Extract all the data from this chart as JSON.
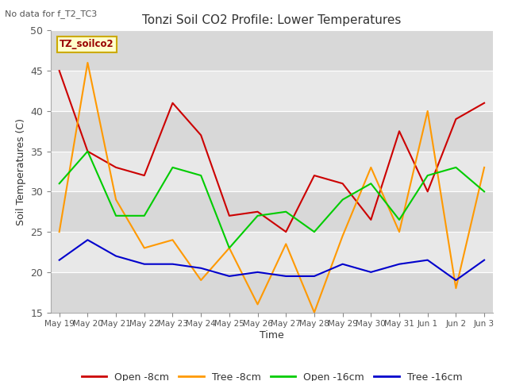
{
  "title": "Tonzi Soil CO2 Profile: Lower Temperatures",
  "subtitle": "No data for f_T2_TC3",
  "ylabel": "Soil Temperatures (C)",
  "xlabel": "Time",
  "ylim": [
    15,
    50
  ],
  "bg_color": "#e8e8e8",
  "legend_box_label": "TZ_soilco2",
  "x_labels": [
    "May 19",
    "May 20",
    "May 21",
    "May 22",
    "May 23",
    "May 24",
    "May 25",
    "May 26",
    "May 27",
    "May 28",
    "May 29",
    "May 30",
    "May 31",
    "Jun 1",
    "Jun 2",
    "Jun 3"
  ],
  "series": {
    "open_8cm": {
      "label": "Open -8cm",
      "color": "#cc0000",
      "values": [
        45,
        35,
        33,
        32,
        41,
        37,
        27,
        27.5,
        25,
        32,
        31,
        26.5,
        37.5,
        30,
        39,
        41
      ]
    },
    "tree_8cm": {
      "label": "Tree -8cm",
      "color": "#ff9900",
      "values": [
        25,
        46,
        29,
        23,
        24,
        19,
        23,
        16,
        23.5,
        15,
        24.5,
        33,
        25,
        40,
        18,
        33
      ]
    },
    "open_16cm": {
      "label": "Open -16cm",
      "color": "#00cc00",
      "values": [
        31,
        35,
        27,
        27,
        33,
        32,
        23,
        27,
        27.5,
        25,
        29,
        31,
        26.5,
        32,
        33,
        30
      ]
    },
    "tree_16cm": {
      "label": "Tree -16cm",
      "color": "#0000cc",
      "values": [
        21.5,
        24,
        22,
        21,
        21,
        20.5,
        19.5,
        20,
        19.5,
        19.5,
        21,
        20,
        21,
        21.5,
        19,
        21.5
      ]
    }
  },
  "yticks": [
    15,
    20,
    25,
    30,
    35,
    40,
    45,
    50
  ],
  "band_colors": [
    "#d8d8d8",
    "#e8e8e8"
  ]
}
